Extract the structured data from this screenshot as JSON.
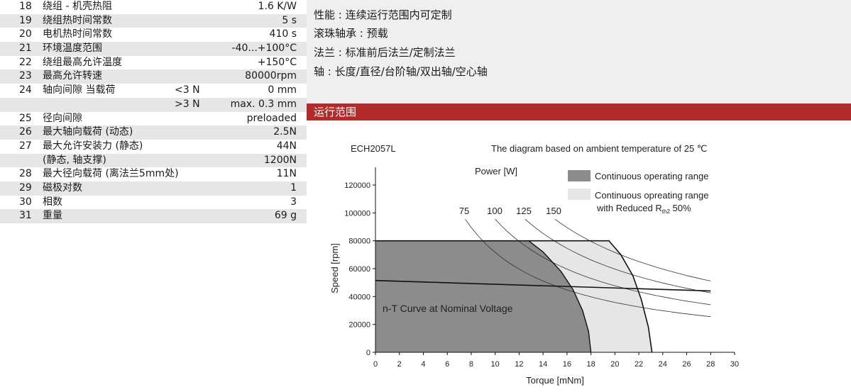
{
  "spec_table": {
    "rows": [
      {
        "num": "18",
        "label": "绕组 - 机壳热阻",
        "cond": "",
        "value": "1.6 K/W",
        "shaded": false
      },
      {
        "num": "19",
        "label": "绕组热时间常数",
        "cond": "",
        "value": "5 s",
        "shaded": true
      },
      {
        "num": "20",
        "label": "电机热时间常数",
        "cond": "",
        "value": "410 s",
        "shaded": false
      },
      {
        "num": "21",
        "label": "环境温度范围",
        "cond": "",
        "value": "-40...+100°C",
        "shaded": true
      },
      {
        "num": "22",
        "label": "绕组最高允许温度",
        "cond": "",
        "value": "+150°C",
        "shaded": false
      },
      {
        "num": "23",
        "label": "最高允许转速",
        "cond": "",
        "value": "80000rpm",
        "shaded": true
      },
      {
        "num": "24",
        "label": "轴向间隙  当载荷",
        "cond": "<3 N",
        "value": "0 mm",
        "shaded": false
      },
      {
        "num": "",
        "label": "",
        "cond": ">3 N",
        "value": "max. 0.3 mm",
        "shaded": true
      },
      {
        "num": "25",
        "label": "径向间隙",
        "cond": "",
        "value": "preloaded",
        "shaded": false
      },
      {
        "num": "26",
        "label": "最大轴向载荷 (动态)",
        "cond": "",
        "value": "2.5N",
        "shaded": true
      },
      {
        "num": "27",
        "label": "最大允许安装力 (静态)",
        "cond": "",
        "value": "44N",
        "shaded": false
      },
      {
        "num": "",
        "label": "(静态, 轴支撑)",
        "cond": "",
        "value": "1200N",
        "shaded": true
      },
      {
        "num": "28",
        "label": "最大径向载荷 (离法兰5mm处)",
        "cond": "",
        "value": "11N",
        "shaded": false
      },
      {
        "num": "29",
        "label": "磁极对数",
        "cond": "",
        "value": "1",
        "shaded": true
      },
      {
        "num": "30",
        "label": "相数",
        "cond": "",
        "value": "3",
        "shaded": false
      },
      {
        "num": "31",
        "label": "重量",
        "cond": "",
        "value": "69 g",
        "shaded": true
      }
    ]
  },
  "features": [
    "性能 : 连续运行范围内可定制",
    "滚珠轴承 : 预载",
    "法兰 : 标准前后法兰/定制法兰",
    "轴 : 长度/直径/台阶轴/双出轴/空心轴"
  ],
  "section": {
    "title": "运行范围",
    "color": "#b22a2a"
  },
  "chart_data": {
    "type": "area",
    "model": "ECH2057L",
    "subtitle": "The diagram based on ambient temperature of 25 ℃",
    "xlabel": "Torque [mNm]",
    "ylabel": "Speed [rpm]",
    "xlim": [
      0,
      30
    ],
    "ylim": [
      0,
      130000
    ],
    "xticks": [
      0,
      2,
      4,
      6,
      8,
      10,
      12,
      14,
      16,
      18,
      20,
      22,
      24,
      26,
      28,
      30
    ],
    "yticks": [
      0,
      20000,
      40000,
      60000,
      80000,
      100000,
      120000
    ],
    "power_label": "Power [W]",
    "power_values": [
      "75",
      "100",
      "125",
      "150"
    ],
    "legend": [
      {
        "name": "Continuous operating range",
        "color": "#8c8c8c"
      },
      {
        "name": "Continuous opreating range",
        "name2": "with Reduced R",
        "sub": "th2",
        "suffix": " 50%",
        "color": "#e6e6e6"
      }
    ],
    "annotation": "n-T Curve at Nominal Voltage",
    "continuous_range": [
      [
        0,
        80000
      ],
      [
        12.8,
        80000
      ],
      [
        14,
        72000
      ],
      [
        15.5,
        58000
      ],
      [
        16.5,
        45000
      ],
      [
        17.3,
        30000
      ],
      [
        17.8,
        15000
      ],
      [
        18,
        0
      ],
      [
        0,
        0
      ]
    ],
    "reduced_range": [
      [
        12.8,
        80000
      ],
      [
        19.5,
        80000
      ],
      [
        20.5,
        70000
      ],
      [
        21.5,
        55000
      ],
      [
        22.2,
        38000
      ],
      [
        22.8,
        18000
      ],
      [
        23.1,
        0
      ],
      [
        18,
        0
      ],
      [
        17.8,
        15000
      ],
      [
        17.3,
        30000
      ],
      [
        16.5,
        45000
      ],
      [
        15.5,
        58000
      ],
      [
        14,
        72000
      ]
    ],
    "nT_curve": [
      [
        0,
        51500
      ],
      [
        28,
        44000
      ]
    ],
    "grey": "#8c8c8c",
    "light": "#e6e6e6"
  }
}
